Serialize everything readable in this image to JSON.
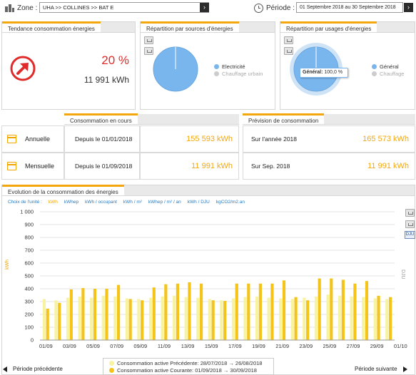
{
  "topbar": {
    "zone_label": "Zone :",
    "zone_value": "UHA >> COLLINES >> BAT E",
    "periode_label": "Période :",
    "periode_value": "01 Septembre 2018 au 30 Septembre 2018",
    "go_arrow": "›"
  },
  "tendance": {
    "title": "Tendance consommation énergies",
    "percent": "20 %",
    "kwh": "11 991 kWh",
    "accent_color": "#e02b2b"
  },
  "sources": {
    "title": "Répartition par sources d'énergies",
    "legend": [
      {
        "label": "Electricité",
        "color": "#7ab6ee",
        "active": true
      },
      {
        "label": "Chauffage urbain",
        "color": "#cccccc",
        "active": false
      }
    ],
    "pie_color": "#7ab6ee"
  },
  "usages": {
    "title": "Répartition par usages d'énergies",
    "legend": [
      {
        "label": "Général",
        "color": "#7ab6ee",
        "active": true
      },
      {
        "label": "Chauffage",
        "color": "#cccccc",
        "active": false
      }
    ],
    "tooltip_label": "Général:",
    "tooltip_value": "100,0 %"
  },
  "consommation": {
    "header_current": "Consommation en cours",
    "header_prevision": "Prévision de consommation",
    "rows": [
      {
        "label": "Annuelle",
        "since": "Depuis le 01/01/2018",
        "value": "155 593 kWh",
        "prev_label": "Sur l'année 2018",
        "prev_value": "165 573 kWh"
      },
      {
        "label": "Mensuelle",
        "since": "Depuis le 01/09/2018",
        "value": "11 991 kWh",
        "prev_label": "Sur Sep. 2018",
        "prev_value": "11 991 kWh"
      }
    ]
  },
  "evolution": {
    "title": "Evolution de la consommation des énergies",
    "units_label": "Choix de l'unité :",
    "units": [
      "kWh",
      "kWhep",
      "kWh / occupant",
      "kWh / m²",
      "kWhep / m² / an",
      "kWh / DJU",
      "kgCO2/m2.an"
    ],
    "active_unit": "kWh",
    "side_buttons": [
      "print",
      "download",
      "DJU"
    ],
    "y_axis_left": "kWh",
    "y_axis_right": "DJU",
    "nav_prev": "Période précédente",
    "nav_next": "Période suivante"
  },
  "chart_data": {
    "type": "bar",
    "ylim": [
      0,
      1000
    ],
    "yticks": [
      "0",
      "100",
      "200",
      "300",
      "400",
      "500",
      "600",
      "700",
      "800",
      "900",
      "1 000"
    ],
    "categories": [
      "01/09",
      "02/09",
      "03/09",
      "04/09",
      "05/09",
      "06/09",
      "07/09",
      "08/09",
      "09/09",
      "10/09",
      "11/09",
      "12/09",
      "13/09",
      "14/09",
      "15/09",
      "16/09",
      "17/09",
      "18/09",
      "19/09",
      "20/09",
      "21/09",
      "22/09",
      "23/09",
      "24/09",
      "25/09",
      "26/09",
      "27/09",
      "28/09",
      "29/09",
      "30/09"
    ],
    "xtick_labels": [
      "01/09",
      "03/09",
      "05/09",
      "07/09",
      "09/09",
      "11/09",
      "13/09",
      "15/09",
      "17/09",
      "19/09",
      "21/09",
      "23/09",
      "25/09",
      "27/09",
      "29/09",
      "01/10"
    ],
    "series": [
      {
        "name": "Consommation active Précédente: 28/07/2018 → 26/08/2018",
        "color": "#f7f3a0",
        "values": [
          320,
          310,
          330,
          340,
          330,
          345,
          340,
          325,
          320,
          330,
          340,
          345,
          335,
          330,
          320,
          310,
          325,
          335,
          340,
          330,
          325,
          320,
          330,
          340,
          355,
          345,
          340,
          335,
          325,
          320
        ]
      },
      {
        "name": "Consommation active Courante: 01/09/2018 → 30/09/2018",
        "color": "#f4c41a",
        "values": [
          245,
          290,
          395,
          405,
          400,
          400,
          430,
          320,
          310,
          410,
          435,
          440,
          450,
          440,
          310,
          305,
          440,
          440,
          440,
          440,
          465,
          335,
          310,
          480,
          480,
          470,
          440,
          460,
          345,
          335
        ]
      }
    ]
  }
}
